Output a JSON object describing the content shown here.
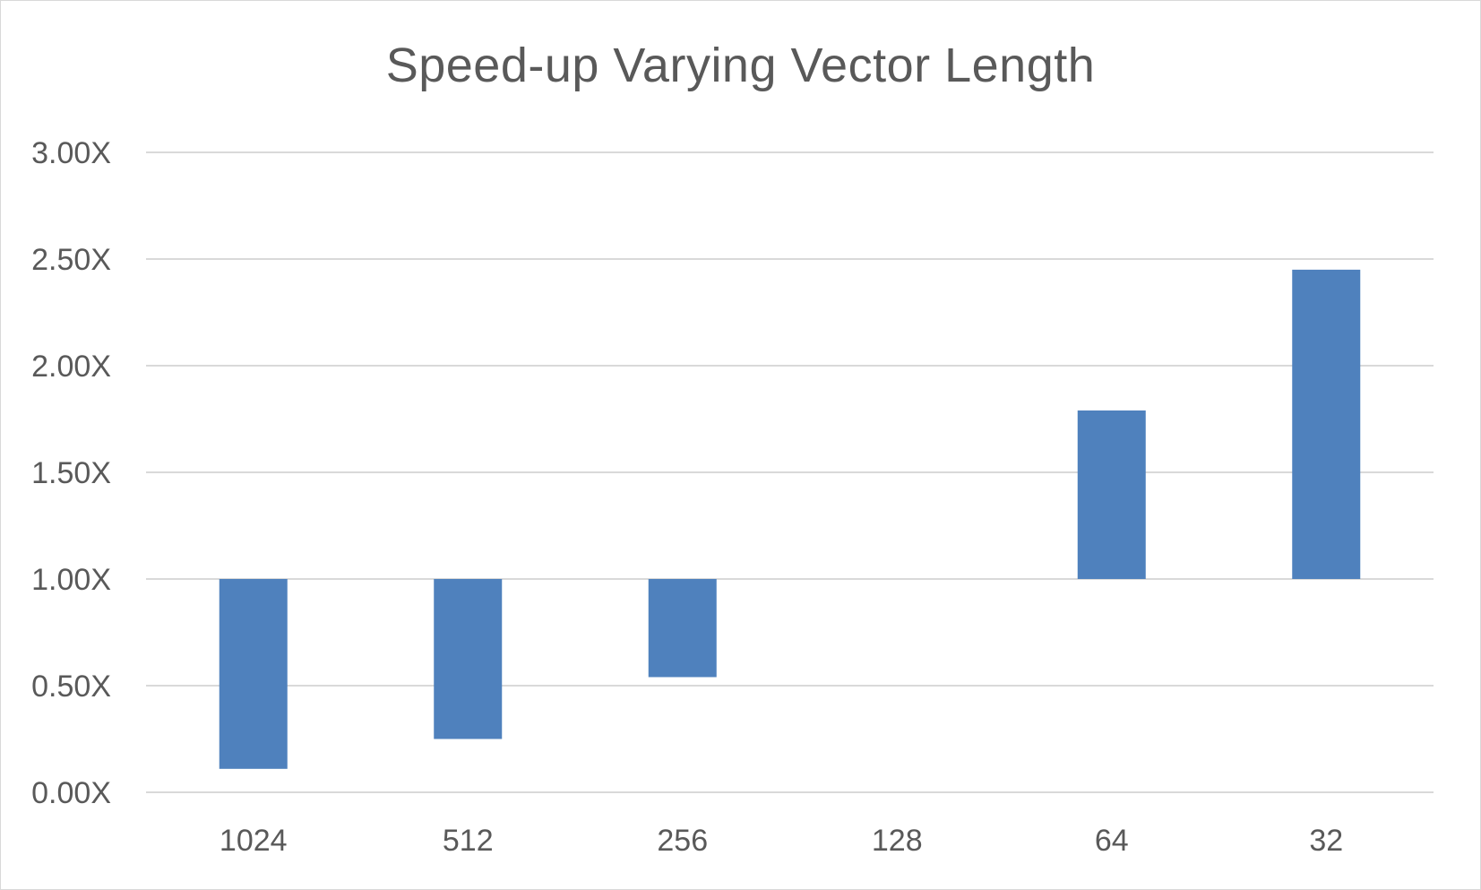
{
  "chart_data": {
    "type": "bar",
    "subtype": "floating-bar",
    "title": "Speed-up Varying Vector Length",
    "xlabel": "",
    "ylabel": "",
    "categories": [
      "1024",
      "512",
      "256",
      "128",
      "64",
      "32"
    ],
    "values": [
      0.11,
      0.25,
      0.54,
      1.0,
      1.79,
      2.45
    ],
    "baseline": 1.0,
    "ylim": [
      0,
      3
    ],
    "yticks": [
      "0.00X",
      "0.50X",
      "1.00X",
      "1.50X",
      "2.00X",
      "2.50X",
      "3.00X"
    ],
    "ytick_values": [
      0,
      0.5,
      1.0,
      1.5,
      2.0,
      2.5,
      3.0
    ],
    "grid": true,
    "legend": "none",
    "bar_color": "#4f81bd"
  }
}
